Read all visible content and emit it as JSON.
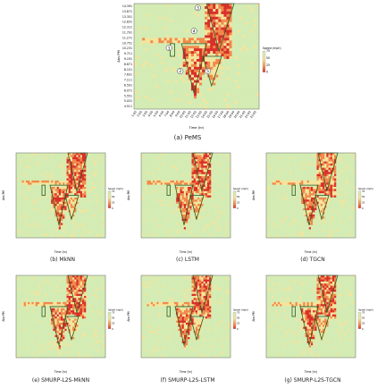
{
  "figure": {
    "panels": [
      {
        "id": "a",
        "caption": "(a) PeMS",
        "y_label": "Abs PM",
        "x_label": "Time (hr)",
        "legend_title": "Speed (mph)",
        "legend_ticks": [
          "0",
          "25",
          "50",
          "75"
        ],
        "y_ticks": [
          "14.391",
          "13.871",
          "13.351",
          "12.831",
          "12.311",
          "11.791",
          "11.271",
          "10.751",
          "10.231",
          "9.711",
          "9.191",
          "8.671",
          "8.151",
          "7.631",
          "7.111",
          "6.591",
          "6.071",
          "5.551",
          "5.031",
          "4.511"
        ],
        "x_ticks": [
          "1:00",
          "2:00",
          "3:00",
          "4:00",
          "5:00",
          "6:00",
          "7:00",
          "8:00",
          "9:00",
          "10:00",
          "11:00",
          "12:00",
          "13:00",
          "14:00",
          "15:00",
          "16:00",
          "17:00",
          "18:00",
          "19:00",
          "20:00",
          "21:00",
          "22:00",
          "23:00"
        ],
        "annotations": [
          "1",
          "2",
          "3",
          "4",
          "5"
        ]
      },
      {
        "id": "b",
        "caption": "(b) MkNN",
        "y_label": "Abs PM",
        "x_label": "Time (hr)",
        "legend_title": "Speed (mph)",
        "legend_ticks": [
          "0",
          "25",
          "50",
          "75"
        ]
      },
      {
        "id": "c",
        "caption": "(c) LSTM",
        "y_label": "Abs PM",
        "x_label": "Time (hr)",
        "legend_title": "Speed (mph)",
        "legend_ticks": [
          "0",
          "25",
          "50",
          "75"
        ]
      },
      {
        "id": "d",
        "caption": "(d) TGCN",
        "y_label": "Abs PM",
        "x_label": "Time (hr)",
        "legend_title": "Speed (mph)",
        "legend_ticks": [
          "0",
          "25",
          "50",
          "75"
        ]
      },
      {
        "id": "e",
        "caption": "(e) SMURP-L2S-MkNN",
        "y_label": "Abs PM",
        "x_label": "Time (hr)",
        "legend_title": "Speed (mph)",
        "legend_ticks": [
          "0",
          "25",
          "50",
          "75"
        ]
      },
      {
        "id": "f",
        "caption": "(f) SMURP-L2S-LSTM",
        "y_label": "Abs PM",
        "x_label": "Time (hr)",
        "legend_title": "Speed (mph)",
        "legend_ticks": [
          "0",
          "25",
          "50",
          "75"
        ]
      },
      {
        "id": "g",
        "caption": "(g) SMURP-L2S-TGCN",
        "y_label": "Abs PM",
        "x_label": "Time (hr)",
        "legend_title": "Speed (mph)",
        "legend_ticks": [
          "0",
          "25",
          "50",
          "75"
        ]
      }
    ]
  },
  "colors": {
    "fast": "#d4ecb4",
    "mid": "#f4e49c",
    "slow": "#f08a4c",
    "very_slow": "#d8302a",
    "outline": "#2d5a22"
  }
}
